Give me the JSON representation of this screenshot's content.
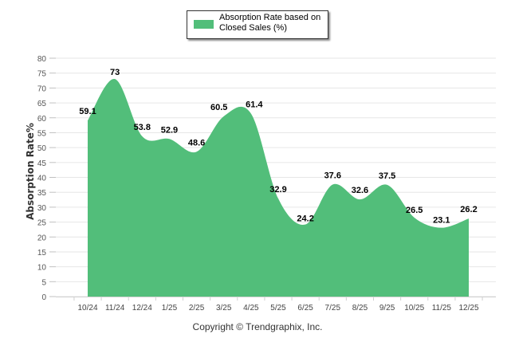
{
  "chart_data": {
    "type": "area",
    "title": "",
    "xlabel": "",
    "ylabel": "Absorption Rate%",
    "ylim": [
      0,
      80
    ],
    "yticks": [
      0,
      5,
      10,
      15,
      20,
      25,
      30,
      35,
      40,
      45,
      50,
      55,
      60,
      65,
      70,
      75,
      80
    ],
    "grid": true,
    "legend_position": "top-center",
    "categories": [
      "10/24",
      "11/24",
      "12/24",
      "1/25",
      "2/25",
      "3/25",
      "4/25",
      "5/25",
      "6/25",
      "7/25",
      "8/25",
      "9/25",
      "10/25",
      "11/25",
      "12/25"
    ],
    "series": [
      {
        "name": "Absorption Rate based on Closed Sales (%)",
        "legend_lines": [
          "Absorption Rate based on",
          "Closed Sales (%)"
        ],
        "color": "#52BE7A",
        "values": [
          59.1,
          73,
          53.8,
          52.9,
          48.6,
          60.5,
          61.4,
          32.9,
          24.2,
          37.6,
          32.6,
          37.5,
          26.5,
          23.1,
          26.2
        ],
        "data_labels": [
          "59.1",
          "73",
          "53.8",
          "52.9",
          "48.6",
          "60.5",
          "61.4",
          "32.9",
          "24.2",
          "37.6",
          "32.6",
          "37.5",
          "26.5",
          "23.1",
          "26.2"
        ]
      }
    ]
  },
  "footer": {
    "copyright": "Copyright © Trendgraphix, Inc."
  }
}
